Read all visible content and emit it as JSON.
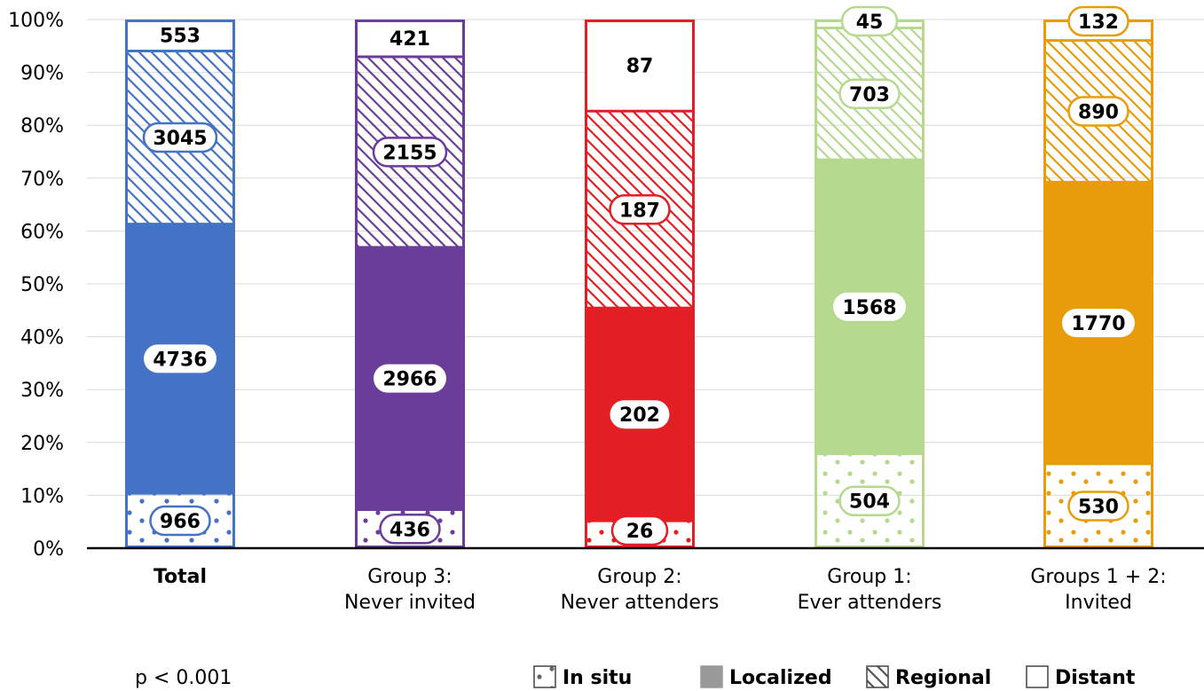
{
  "chart_data": {
    "type": "bar",
    "stacked": true,
    "normalized": true,
    "categories": [
      [
        "Total"
      ],
      [
        "Group 3:",
        "Never invited"
      ],
      [
        "Group 2:",
        "Never attenders"
      ],
      [
        "Group 1:",
        "Ever attenders"
      ],
      [
        "Groups 1 + 2:",
        "Invited"
      ]
    ],
    "bar_colors": [
      "#4472c4",
      "#6a3d9a",
      "#e31e24",
      "#b5d98e",
      "#e89c0a"
    ],
    "series": [
      {
        "name": "In situ",
        "pattern": "dots",
        "values": [
          966,
          436,
          26,
          504,
          530
        ]
      },
      {
        "name": "Localized",
        "pattern": "solid",
        "values": [
          4736,
          2966,
          202,
          1568,
          1770
        ]
      },
      {
        "name": "Regional",
        "pattern": "hatch",
        "values": [
          3045,
          2155,
          187,
          703,
          890
        ]
      },
      {
        "name": "Distant",
        "pattern": "empty",
        "values": [
          553,
          421,
          87,
          45,
          132
        ]
      }
    ],
    "y_ticks": [
      "0%",
      "10%",
      "20%",
      "30%",
      "40%",
      "50%",
      "60%",
      "70%",
      "80%",
      "90%",
      "100%"
    ],
    "ylim": [
      0,
      100
    ],
    "grid": true,
    "legend_position": "bottom-right",
    "annotation": "p < 0.001"
  }
}
